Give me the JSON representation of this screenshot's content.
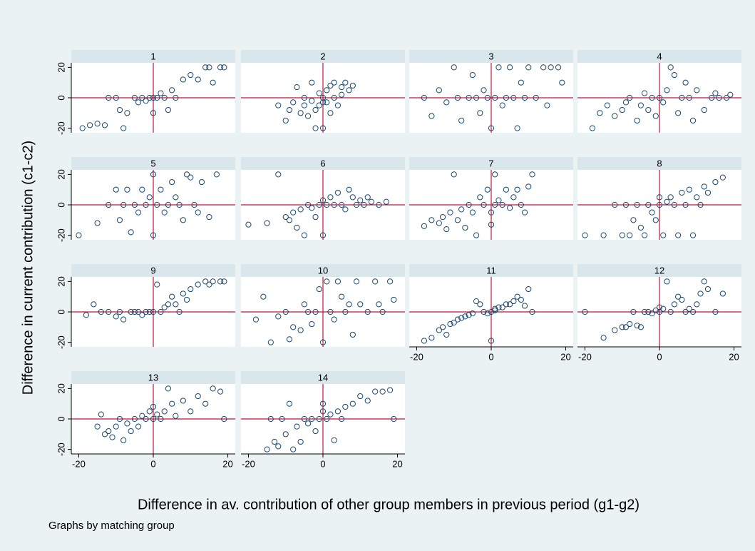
{
  "chart_data": {
    "type": "scatter",
    "ylabel": "Difference in current contribution (c1-c2)",
    "xlabel": "Difference in av. contribution of other group members in previous period (g1-g2)",
    "note": "Graphs by matching group",
    "xlim": [
      -22,
      22
    ],
    "ylim": [
      -23,
      23
    ],
    "xticks": [
      -20,
      0,
      20
    ],
    "yticks": [
      -20,
      0,
      20
    ],
    "xline": 0,
    "yline": 0,
    "line_color": "#c0143c",
    "marker_color": "#1a476f",
    "panels": [
      {
        "title": "1",
        "x": [
          -19,
          -17,
          -15,
          -13,
          -12,
          -10,
          -9,
          -8,
          -7,
          -5,
          -4,
          -3,
          -2,
          -1,
          0,
          0,
          1,
          2,
          3,
          4,
          5,
          6,
          8,
          10,
          12,
          14,
          15,
          16,
          18,
          19
        ],
        "y": [
          -20,
          -18,
          -17,
          -18,
          0,
          0,
          -8,
          -20,
          -10,
          0,
          -3,
          0,
          -2,
          0,
          0,
          -10,
          0,
          3,
          0,
          -8,
          5,
          0,
          12,
          15,
          12,
          20,
          20,
          10,
          20,
          20
        ]
      },
      {
        "title": "2",
        "x": [
          -12,
          -10,
          -9,
          -8,
          -7,
          -6,
          -5,
          -5,
          -4,
          -3,
          -3,
          -2,
          -1,
          -1,
          0,
          0,
          1,
          1,
          2,
          3,
          3,
          4,
          5,
          5,
          6,
          7,
          8,
          -2,
          2,
          0
        ],
        "y": [
          -5,
          -15,
          -8,
          -3,
          7,
          -10,
          -5,
          0,
          -12,
          10,
          -2,
          -8,
          3,
          -5,
          0,
          -20,
          5,
          -3,
          8,
          0,
          10,
          -5,
          7,
          2,
          10,
          5,
          8,
          -20,
          -10,
          -3
        ]
      },
      {
        "title": "3",
        "x": [
          -18,
          -16,
          -14,
          -12,
          -10,
          -9,
          -8,
          -6,
          -5,
          -4,
          -3,
          -2,
          -1,
          0,
          1,
          2,
          3,
          4,
          5,
          6,
          7,
          8,
          9,
          10,
          12,
          14,
          15,
          16,
          18,
          19
        ],
        "y": [
          0,
          -12,
          5,
          -3,
          20,
          0,
          -15,
          0,
          15,
          0,
          -10,
          5,
          0,
          -20,
          0,
          20,
          -5,
          0,
          20,
          0,
          -20,
          10,
          0,
          20,
          0,
          20,
          -5,
          20,
          20,
          10
        ]
      },
      {
        "title": "4",
        "x": [
          -18,
          -16,
          -14,
          -12,
          -10,
          -9,
          -8,
          -6,
          -5,
          -4,
          -3,
          -2,
          -1,
          0,
          1,
          2,
          3,
          4,
          5,
          6,
          7,
          8,
          9,
          10,
          12,
          14,
          15,
          16,
          18,
          19
        ],
        "y": [
          -20,
          -10,
          -5,
          -12,
          -8,
          -3,
          0,
          -15,
          -5,
          3,
          -8,
          0,
          -12,
          0,
          -3,
          5,
          20,
          15,
          -10,
          0,
          10,
          0,
          -15,
          5,
          -8,
          0,
          3,
          0,
          0,
          2
        ]
      },
      {
        "title": "5",
        "x": [
          -20,
          -15,
          -12,
          -10,
          -9,
          -8,
          -7,
          -6,
          -5,
          -4,
          -3,
          -2,
          -1,
          0,
          0,
          1,
          2,
          3,
          4,
          5,
          6,
          7,
          8,
          9,
          10,
          11,
          12,
          13,
          15,
          17
        ],
        "y": [
          -20,
          -12,
          0,
          10,
          -10,
          0,
          10,
          -18,
          0,
          -5,
          10,
          0,
          5,
          20,
          -20,
          0,
          10,
          -5,
          0,
          15,
          5,
          0,
          -10,
          20,
          18,
          0,
          -5,
          15,
          -8,
          20
        ]
      },
      {
        "title": "6",
        "x": [
          -20,
          -15,
          -12,
          -10,
          -9,
          -8,
          -7,
          -6,
          -5,
          -4,
          -3,
          -2,
          -1,
          0,
          0,
          1,
          2,
          3,
          4,
          5,
          6,
          7,
          8,
          9,
          10,
          11,
          12,
          13,
          15,
          17
        ],
        "y": [
          -13,
          -12,
          20,
          -8,
          -10,
          -5,
          -15,
          -3,
          -20,
          0,
          -2,
          -8,
          0,
          3,
          -20,
          0,
          5,
          0,
          8,
          0,
          -3,
          10,
          5,
          0,
          3,
          0,
          5,
          2,
          0,
          2
        ]
      },
      {
        "title": "7",
        "x": [
          -18,
          -16,
          -14,
          -13,
          -12,
          -11,
          -10,
          -9,
          -8,
          -7,
          -6,
          -5,
          -4,
          -3,
          -2,
          -1,
          0,
          0,
          1,
          1,
          2,
          3,
          4,
          5,
          6,
          7,
          8,
          9,
          10,
          11
        ],
        "y": [
          -14,
          -10,
          -12,
          -8,
          -16,
          -5,
          20,
          -10,
          -3,
          -15,
          0,
          -5,
          -20,
          5,
          0,
          10,
          -5,
          -13,
          20,
          0,
          3,
          0,
          10,
          -2,
          5,
          10,
          0,
          -5,
          12,
          20
        ]
      },
      {
        "title": "8",
        "x": [
          -20,
          -15,
          -12,
          -10,
          -9,
          -8,
          -7,
          -6,
          -5,
          -4,
          -3,
          -2,
          -1,
          0,
          0,
          1,
          2,
          3,
          4,
          5,
          6,
          7,
          8,
          9,
          10,
          11,
          12,
          13,
          15,
          17
        ],
        "y": [
          -20,
          -20,
          0,
          -20,
          0,
          -20,
          -10,
          0,
          -15,
          -20,
          0,
          -5,
          -10,
          0,
          5,
          -20,
          2,
          5,
          0,
          -20,
          8,
          0,
          10,
          -20,
          5,
          0,
          12,
          8,
          15,
          18
        ]
      },
      {
        "title": "9",
        "x": [
          -18,
          -16,
          -14,
          -12,
          -10,
          -9,
          -8,
          -6,
          -5,
          -4,
          -3,
          -2,
          -1,
          0,
          1,
          2,
          3,
          4,
          5,
          6,
          7,
          8,
          9,
          10,
          12,
          14,
          15,
          16,
          18,
          19
        ],
        "y": [
          -2,
          5,
          0,
          0,
          -3,
          0,
          -5,
          0,
          0,
          0,
          -2,
          0,
          0,
          0,
          18,
          0,
          3,
          5,
          10,
          5,
          0,
          12,
          8,
          15,
          18,
          20,
          18,
          20,
          20,
          20
        ]
      },
      {
        "title": "10",
        "x": [
          -18,
          -16,
          -14,
          -12,
          -10,
          -9,
          -8,
          -6,
          -5,
          -4,
          -3,
          -2,
          -1,
          0,
          1,
          2,
          3,
          4,
          5,
          6,
          7,
          8,
          9,
          10,
          12,
          14,
          15,
          16,
          18,
          19
        ],
        "y": [
          -5,
          10,
          -20,
          -3,
          0,
          -18,
          -10,
          -12,
          5,
          0,
          -8,
          0,
          15,
          -20,
          20,
          0,
          -5,
          20,
          10,
          0,
          5,
          -15,
          20,
          5,
          0,
          20,
          5,
          0,
          20,
          8
        ]
      },
      {
        "title": "11",
        "x": [
          -18,
          -16,
          -14,
          -13,
          -12,
          -11,
          -10,
          -9,
          -8,
          -7,
          -6,
          -5,
          -4,
          -3,
          -2,
          -1,
          0,
          0,
          1,
          1,
          2,
          3,
          4,
          5,
          6,
          7,
          8,
          9,
          10,
          11
        ],
        "y": [
          -19,
          -17,
          -12,
          -10,
          -15,
          -8,
          -7,
          -5,
          -4,
          -3,
          -2,
          -1,
          7,
          5,
          0,
          -1,
          0,
          -19,
          2,
          1,
          3,
          3,
          5,
          5,
          7,
          10,
          8,
          4,
          15,
          0
        ]
      },
      {
        "title": "12",
        "x": [
          -20,
          -15,
          -12,
          -10,
          -9,
          -8,
          -7,
          -6,
          -5,
          -4,
          -3,
          -2,
          -1,
          0,
          0,
          1,
          2,
          3,
          4,
          5,
          6,
          7,
          8,
          9,
          10,
          11,
          12,
          13,
          15,
          17
        ],
        "y": [
          0,
          -17,
          -12,
          -10,
          -10,
          -8,
          0,
          -9,
          -10,
          0,
          0,
          -1,
          1,
          0,
          3,
          2,
          20,
          0,
          5,
          10,
          8,
          0,
          2,
          0,
          5,
          12,
          20,
          15,
          0,
          12
        ]
      },
      {
        "title": "13",
        "x": [
          -15,
          -14,
          -13,
          -12,
          -11,
          -10,
          -9,
          -8,
          -7,
          -6,
          -5,
          -4,
          -3,
          -2,
          -1,
          0,
          0,
          1,
          2,
          3,
          4,
          5,
          6,
          8,
          10,
          12,
          14,
          16,
          18,
          19
        ],
        "y": [
          -5,
          3,
          -10,
          -8,
          -12,
          -5,
          0,
          -14,
          -3,
          -8,
          0,
          -5,
          2,
          0,
          5,
          0,
          8,
          3,
          0,
          5,
          20,
          10,
          2,
          12,
          5,
          15,
          10,
          20,
          18,
          0
        ]
      },
      {
        "title": "14",
        "x": [
          -15,
          -14,
          -13,
          -12,
          -11,
          -10,
          -9,
          -8,
          -7,
          -6,
          -5,
          -4,
          -3,
          -2,
          -1,
          0,
          0,
          1,
          2,
          3,
          4,
          5,
          6,
          8,
          10,
          12,
          14,
          16,
          18,
          19
        ],
        "y": [
          -20,
          0,
          -15,
          -18,
          0,
          -10,
          10,
          -20,
          -5,
          -15,
          0,
          -3,
          0,
          -8,
          0,
          5,
          10,
          0,
          3,
          -14,
          5,
          0,
          8,
          10,
          15,
          12,
          18,
          18,
          19,
          0
        ]
      }
    ]
  }
}
